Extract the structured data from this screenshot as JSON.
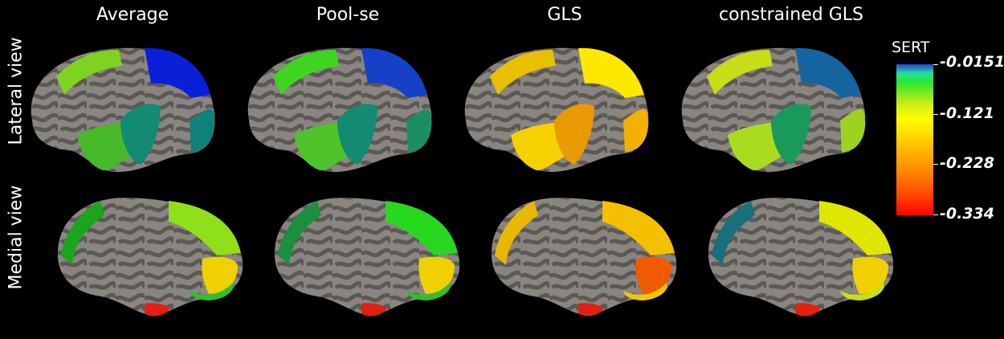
{
  "columns": [
    {
      "title": "Average"
    },
    {
      "title": "Pool-se"
    },
    {
      "title": "GLS"
    },
    {
      "title": "constrained GLS"
    }
  ],
  "rows": [
    {
      "label": "Lateral view"
    },
    {
      "label": "Medial view"
    }
  ],
  "colorbar": {
    "title": "SERT",
    "ticks": [
      "-0.0151",
      "-0.121",
      "-0.228",
      "-0.334"
    ]
  },
  "region_colors": {
    "Average": {
      "lat_front": "#7ed321",
      "lat_top": "#0a1fd8",
      "lat_temp": "#46b82a",
      "lat_insula": "#138a72",
      "lat_back": "#10807a",
      "med_front": "#19a51c",
      "med_top": "#8fe01a",
      "med_occ": "#f0d000",
      "med_low": "#2cc02c"
    },
    "Pool-se": {
      "lat_front": "#3ed521",
      "lat_top": "#1540c8",
      "lat_temp": "#4ec42a",
      "lat_insula": "#138a72",
      "lat_back": "#1a9060",
      "med_front": "#1a8f3c",
      "med_top": "#28d81e",
      "med_occ": "#f0d000",
      "med_low": "#2cc02c"
    },
    "GLS": {
      "lat_front": "#e8c000",
      "lat_top": "#ffe800",
      "lat_temp": "#f7d000",
      "lat_insula": "#e89a00",
      "lat_back": "#f2b000",
      "med_front": "#e8b800",
      "med_top": "#f5c000",
      "med_occ": "#f05a00",
      "med_low": "#f0c800"
    },
    "constrained GLS": {
      "lat_front": "#c8dc1a",
      "lat_top": "#1565a0",
      "lat_temp": "#a9dc20",
      "lat_insula": "#1a9a5a",
      "lat_back": "#9ad420",
      "med_front": "#18707a",
      "med_top": "#e0e600",
      "med_occ": "#f0d000",
      "med_low": "#c8e010"
    }
  }
}
